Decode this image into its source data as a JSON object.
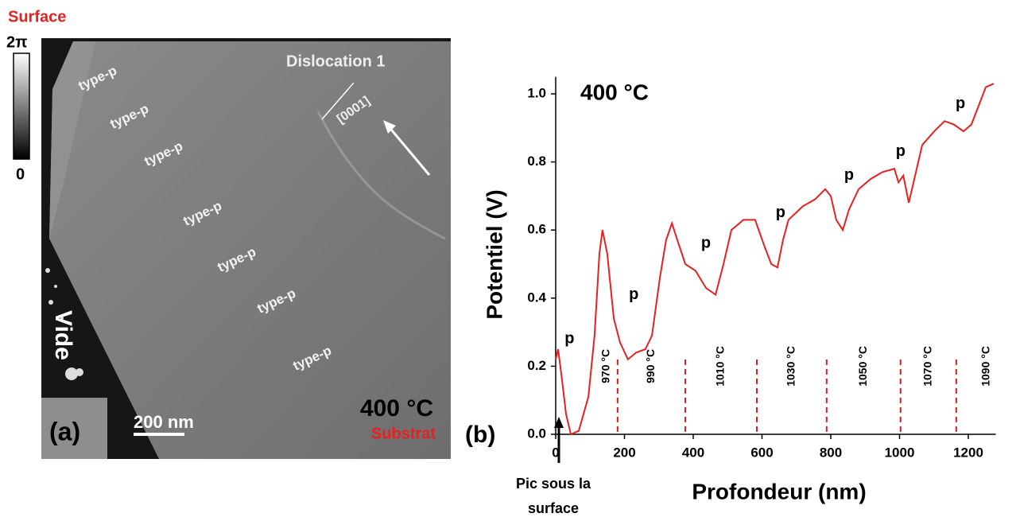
{
  "panel_a": {
    "header": "Surface",
    "colorbar_max": "2π",
    "colorbar_min": "0",
    "layer_labels": [
      "type-p",
      "type-p",
      "type-p",
      "type-p",
      "type-p",
      "type-p",
      "type-p"
    ],
    "dislocation": "Dislocation 1",
    "direction": "[0001]",
    "void": "Vide",
    "panel_label": "(a)",
    "scale_bar": "200 nm",
    "temperature": "400 °C",
    "footer": "Substrat"
  },
  "chart_data": {
    "type": "line",
    "title": "400 °C",
    "panel_label": "(b)",
    "xlabel": "Profondeur (nm)",
    "ylabel": "Potentiel (V)",
    "xlim": [
      0,
      1280
    ],
    "ylim": [
      0,
      1.05
    ],
    "xticks": [
      0,
      200,
      400,
      600,
      800,
      1000,
      1200
    ],
    "yticks": [
      {
        "value": 0,
        "label": "0.0"
      },
      0.2,
      0.4,
      0.6,
      0.8,
      {
        "value": 1,
        "label": "1.0"
      }
    ],
    "series": [
      {
        "color": "#e8201f",
        "x": [
          0,
          7,
          16,
          30,
          44,
          67,
          95,
          113,
          127,
          136,
          150,
          169,
          187,
          210,
          234,
          261,
          280,
          303,
          321,
          338,
          354,
          377,
          407,
          437,
          465,
          488,
          511,
          546,
          580,
          608,
          627,
          645,
          661,
          677,
          719,
          754,
          784,
          800,
          816,
          835,
          853,
          881,
          916,
          950,
          985,
          997,
          1011,
          1027,
          1043,
          1066,
          1101,
          1131,
          1158,
          1186,
          1209,
          1232,
          1251,
          1274
        ],
        "values": [
          0.22,
          0.25,
          0.18,
          0.06,
          0.0,
          0.01,
          0.11,
          0.29,
          0.53,
          0.6,
          0.53,
          0.34,
          0.27,
          0.22,
          0.24,
          0.25,
          0.29,
          0.46,
          0.57,
          0.62,
          0.57,
          0.5,
          0.48,
          0.43,
          0.41,
          0.5,
          0.6,
          0.63,
          0.63,
          0.55,
          0.5,
          0.49,
          0.57,
          0.63,
          0.67,
          0.69,
          0.72,
          0.7,
          0.63,
          0.6,
          0.66,
          0.72,
          0.75,
          0.77,
          0.78,
          0.74,
          0.76,
          0.68,
          0.75,
          0.85,
          0.89,
          0.92,
          0.91,
          0.89,
          0.91,
          0.97,
          1.02,
          1.03
        ]
      }
    ],
    "boundaries": [
      180,
      377,
      585,
      788,
      1003,
      1165
    ],
    "boundary_color": "#d42020",
    "zone_labels": [
      "970 °C",
      "990 °C",
      "1010 °C",
      "1030 °C",
      "1050 °C",
      "1070 °C",
      "1090 °C"
    ],
    "annotations": [
      {
        "text": "p",
        "x": 40,
        "y": 0.28
      },
      {
        "text": "p",
        "x": 227,
        "y": 0.41
      },
      {
        "text": "p",
        "x": 437,
        "y": 0.56
      },
      {
        "text": "p",
        "x": 654,
        "y": 0.65
      },
      {
        "text": "p",
        "x": 853,
        "y": 0.76
      },
      {
        "text": "p",
        "x": 1003,
        "y": 0.83
      },
      {
        "text": "p",
        "x": 1177,
        "y": 0.97
      }
    ],
    "peak_note": [
      "Pic sous la",
      "surface"
    ]
  }
}
